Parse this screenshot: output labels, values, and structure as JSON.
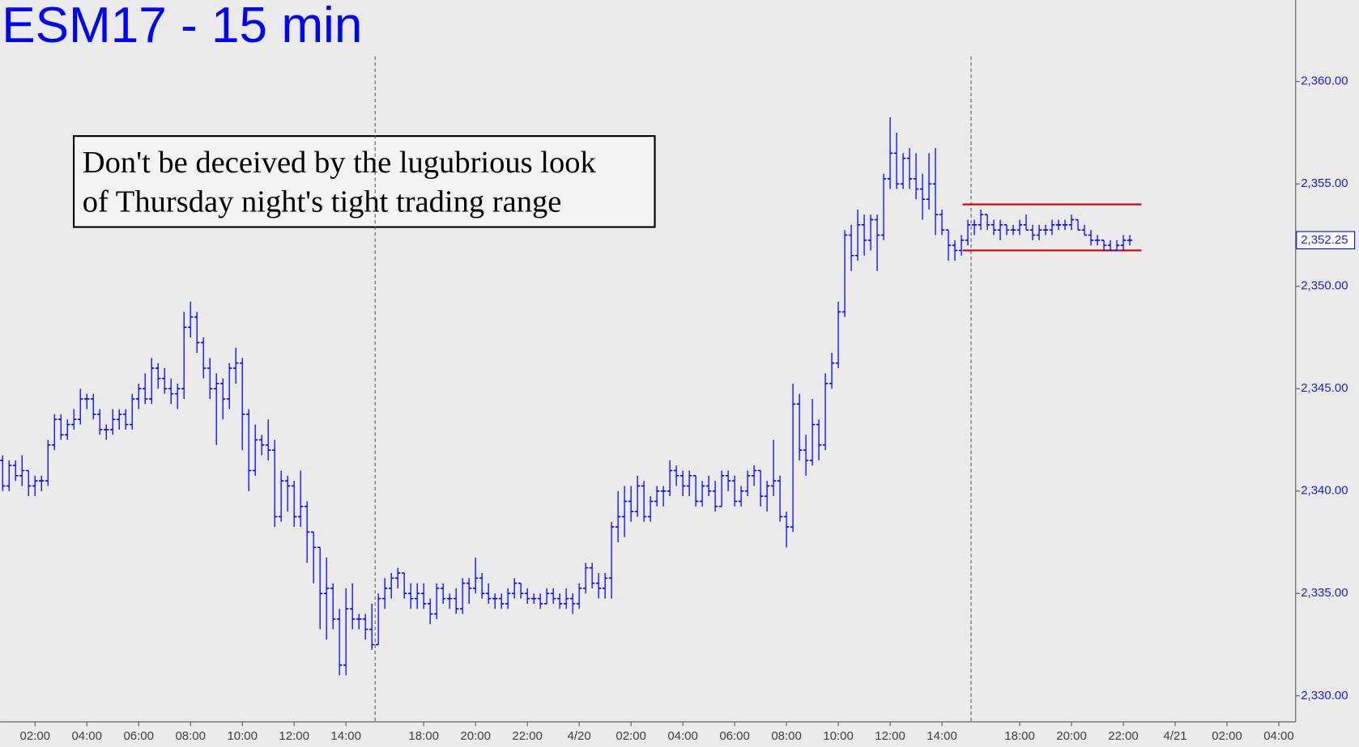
{
  "chart_data": {
    "type": "ohlc",
    "title": "ESM17 - 15 min",
    "color": "#0000ff",
    "ylim": [
      2328.73,
      2363.98
    ],
    "yticks": [
      {
        "value": 2330,
        "label": "2,330.00"
      },
      {
        "value": 2335,
        "label": "2,335.00"
      },
      {
        "value": 2340,
        "label": "2,340.00"
      },
      {
        "value": 2345,
        "label": "2,345.00"
      },
      {
        "value": 2350,
        "label": "2,350.00"
      },
      {
        "value": 2355,
        "label": "2,355.00"
      },
      {
        "value": 2360,
        "label": "2,360.00"
      }
    ],
    "xlim": [
      -0.4,
      199.6
    ],
    "xticks": [
      {
        "value": 5,
        "label": "02:00"
      },
      {
        "value": 13,
        "label": "04:00"
      },
      {
        "value": 21,
        "label": "06:00"
      },
      {
        "value": 29,
        "label": "08:00"
      },
      {
        "value": 37,
        "label": "10:00"
      },
      {
        "value": 45,
        "label": "12:00"
      },
      {
        "value": 53,
        "label": "14:00"
      },
      {
        "value": 65,
        "label": "18:00"
      },
      {
        "value": 73,
        "label": "20:00"
      },
      {
        "value": 81,
        "label": "22:00"
      },
      {
        "value": 89,
        "label": "4/20"
      },
      {
        "value": 97,
        "label": "02:00"
      },
      {
        "value": 105,
        "label": "04:00"
      },
      {
        "value": 113,
        "label": "06:00"
      },
      {
        "value": 121,
        "label": "08:00"
      },
      {
        "value": 129,
        "label": "10:00"
      },
      {
        "value": 137,
        "label": "12:00"
      },
      {
        "value": 145,
        "label": "14:00"
      },
      {
        "value": 157,
        "label": "18:00"
      },
      {
        "value": 165,
        "label": "20:00"
      },
      {
        "value": 173,
        "label": "22:00"
      },
      {
        "value": 181,
        "label": "4/21"
      },
      {
        "value": 189,
        "label": "02:00"
      },
      {
        "value": 197,
        "label": "04:00"
      }
    ],
    "session_breaks": [
      57.5,
      149.5
    ],
    "last_price": {
      "value": 2352.25,
      "label": "2,352.25"
    },
    "range_lines": {
      "color": "#cc0000",
      "levels": [
        2354.0,
        2351.75
      ],
      "x": [
        148.2,
        175.8
      ]
    },
    "annotation": [
      "Don't be deceived by the lugubrious look",
      "of Thursday night's tight trading range"
    ],
    "ohlc": [
      [
        2341.5,
        2341.75,
        2340.0,
        2340.25
      ],
      [
        2340.25,
        2341.5,
        2340.0,
        2341.25
      ],
      [
        2341.25,
        2341.5,
        2340.5,
        2340.75
      ],
      [
        2340.75,
        2341.75,
        2340.25,
        2341.0
      ],
      [
        2341.0,
        2341.0,
        2339.75,
        2340.25
      ],
      [
        2340.25,
        2340.75,
        2339.75,
        2340.5
      ],
      [
        2340.5,
        2340.75,
        2340.0,
        2340.5
      ],
      [
        2340.5,
        2342.5,
        2340.25,
        2342.25
      ],
      [
        2342.25,
        2343.75,
        2342.0,
        2343.5
      ],
      [
        2343.5,
        2343.75,
        2342.5,
        2342.75
      ],
      [
        2342.75,
        2343.5,
        2342.5,
        2343.25
      ],
      [
        2343.25,
        2344.0,
        2343.0,
        2343.5
      ],
      [
        2343.5,
        2345.0,
        2343.25,
        2344.5
      ],
      [
        2344.5,
        2344.75,
        2344.0,
        2344.5
      ],
      [
        2344.5,
        2344.75,
        2343.5,
        2343.75
      ],
      [
        2343.75,
        2344.0,
        2342.75,
        2343.0
      ],
      [
        2343.0,
        2343.25,
        2342.5,
        2343.0
      ],
      [
        2343.0,
        2344.0,
        2342.75,
        2343.5
      ],
      [
        2343.5,
        2344.0,
        2343.0,
        2343.75
      ],
      [
        2343.75,
        2344.0,
        2343.0,
        2343.25
      ],
      [
        2343.25,
        2344.75,
        2343.0,
        2344.5
      ],
      [
        2344.5,
        2345.25,
        2344.0,
        2345.0
      ],
      [
        2345.0,
        2345.75,
        2344.25,
        2344.5
      ],
      [
        2344.5,
        2346.5,
        2344.25,
        2346.0
      ],
      [
        2346.0,
        2346.25,
        2345.0,
        2345.5
      ],
      [
        2345.5,
        2346.0,
        2344.75,
        2345.0
      ],
      [
        2345.0,
        2345.5,
        2344.25,
        2344.75
      ],
      [
        2344.75,
        2345.25,
        2344.0,
        2345.0
      ],
      [
        2345.0,
        2348.75,
        2344.5,
        2348.0
      ],
      [
        2348.0,
        2349.25,
        2347.5,
        2348.5
      ],
      [
        2348.5,
        2348.75,
        2346.75,
        2347.25
      ],
      [
        2347.25,
        2347.5,
        2345.5,
        2346.0
      ],
      [
        2346.0,
        2346.5,
        2344.5,
        2345.0
      ],
      [
        2345.0,
        2345.75,
        2342.25,
        2345.25
      ],
      [
        2345.25,
        2345.5,
        2343.5,
        2344.5
      ],
      [
        2344.5,
        2346.25,
        2344.0,
        2346.0
      ],
      [
        2346.0,
        2347.0,
        2345.25,
        2346.25
      ],
      [
        2346.25,
        2346.5,
        2342.0,
        2343.75
      ],
      [
        2343.75,
        2344.0,
        2340.0,
        2341.0
      ],
      [
        2341.0,
        2343.25,
        2340.75,
        2342.5
      ],
      [
        2342.5,
        2342.75,
        2341.75,
        2342.25
      ],
      [
        2342.25,
        2343.5,
        2341.5,
        2342.0
      ],
      [
        2342.0,
        2342.5,
        2338.25,
        2338.75
      ],
      [
        2338.75,
        2341.0,
        2338.5,
        2340.5
      ],
      [
        2340.5,
        2340.75,
        2339.0,
        2340.25
      ],
      [
        2340.25,
        2340.5,
        2338.25,
        2338.75
      ],
      [
        2338.75,
        2341.0,
        2338.25,
        2339.25
      ],
      [
        2339.25,
        2339.5,
        2336.5,
        2338.0
      ],
      [
        2338.0,
        2338.0,
        2335.5,
        2337.25
      ],
      [
        2337.25,
        2337.25,
        2333.25,
        2335.0
      ],
      [
        2335.0,
        2336.75,
        2332.75,
        2335.25
      ],
      [
        2335.25,
        2335.5,
        2333.25,
        2333.75
      ],
      [
        2333.75,
        2334.25,
        2331.0,
        2331.5
      ],
      [
        2331.5,
        2335.25,
        2331.0,
        2334.25
      ],
      [
        2334.25,
        2335.5,
        2333.25,
        2333.75
      ],
      [
        2333.75,
        2334.0,
        2333.25,
        2333.75
      ],
      [
        2333.75,
        2334.0,
        2332.75,
        2333.25
      ],
      [
        2333.25,
        2334.5,
        2332.25,
        2332.5
      ],
      [
        2332.5,
        2335.0,
        2332.5,
        2334.75
      ],
      [
        2334.75,
        2335.75,
        2334.25,
        2335.25
      ],
      [
        2335.25,
        2336.0,
        2334.75,
        2335.75
      ],
      [
        2335.75,
        2336.25,
        2335.25,
        2336.0
      ],
      [
        2336.0,
        2336.0,
        2334.75,
        2335.0
      ],
      [
        2335.0,
        2335.5,
        2334.25,
        2334.75
      ],
      [
        2334.75,
        2335.5,
        2334.25,
        2335.0
      ],
      [
        2335.0,
        2335.5,
        2334.25,
        2334.5
      ],
      [
        2334.5,
        2334.75,
        2333.5,
        2334.0
      ],
      [
        2334.0,
        2335.5,
        2333.75,
        2335.25
      ],
      [
        2335.25,
        2335.5,
        2334.5,
        2334.75
      ],
      [
        2334.75,
        2335.0,
        2334.25,
        2334.75
      ],
      [
        2334.75,
        2335.25,
        2334.0,
        2334.25
      ],
      [
        2334.25,
        2335.75,
        2334.0,
        2335.5
      ],
      [
        2335.5,
        2335.75,
        2334.5,
        2335.25
      ],
      [
        2335.25,
        2336.75,
        2335.0,
        2335.75
      ],
      [
        2335.75,
        2336.0,
        2334.75,
        2335.0
      ],
      [
        2335.0,
        2335.5,
        2334.5,
        2334.75
      ],
      [
        2334.75,
        2335.0,
        2334.25,
        2334.75
      ],
      [
        2334.75,
        2335.0,
        2334.25,
        2334.5
      ],
      [
        2334.5,
        2335.25,
        2334.25,
        2335.0
      ],
      [
        2335.0,
        2335.75,
        2334.75,
        2335.5
      ],
      [
        2335.5,
        2335.5,
        2334.75,
        2335.0
      ],
      [
        2335.0,
        2335.25,
        2334.5,
        2334.75
      ],
      [
        2334.75,
        2335.0,
        2334.5,
        2334.75
      ],
      [
        2334.75,
        2335.0,
        2334.25,
        2334.5
      ],
      [
        2334.5,
        2335.25,
        2334.5,
        2335.0
      ],
      [
        2335.0,
        2335.25,
        2334.5,
        2334.75
      ],
      [
        2334.75,
        2335.0,
        2334.25,
        2334.5
      ],
      [
        2334.5,
        2335.25,
        2334.25,
        2334.75
      ],
      [
        2334.75,
        2335.0,
        2334.0,
        2334.5
      ],
      [
        2334.5,
        2335.5,
        2334.25,
        2335.25
      ],
      [
        2335.25,
        2336.5,
        2335.0,
        2336.25
      ],
      [
        2336.25,
        2336.5,
        2335.25,
        2335.5
      ],
      [
        2335.5,
        2336.0,
        2334.75,
        2335.25
      ],
      [
        2335.25,
        2336.0,
        2334.75,
        2335.75
      ],
      [
        2335.75,
        2338.5,
        2334.75,
        2338.25
      ],
      [
        2338.25,
        2340.0,
        2337.5,
        2338.75
      ],
      [
        2338.75,
        2340.25,
        2337.75,
        2339.5
      ],
      [
        2339.5,
        2340.25,
        2338.5,
        2339.0
      ],
      [
        2339.0,
        2340.75,
        2338.75,
        2340.25
      ],
      [
        2340.25,
        2340.5,
        2338.5,
        2338.75
      ],
      [
        2338.75,
        2339.75,
        2338.5,
        2339.5
      ],
      [
        2339.5,
        2340.25,
        2339.25,
        2340.0
      ],
      [
        2340.0,
        2340.25,
        2339.25,
        2340.0
      ],
      [
        2340.0,
        2341.5,
        2339.75,
        2341.0
      ],
      [
        2341.0,
        2341.25,
        2340.25,
        2340.75
      ],
      [
        2340.75,
        2341.0,
        2339.75,
        2340.25
      ],
      [
        2340.25,
        2341.0,
        2339.75,
        2340.75
      ],
      [
        2340.75,
        2340.75,
        2339.25,
        2339.5
      ],
      [
        2339.5,
        2340.5,
        2339.25,
        2340.25
      ],
      [
        2340.25,
        2340.75,
        2339.75,
        2340.0
      ],
      [
        2340.0,
        2340.5,
        2339.0,
        2339.25
      ],
      [
        2339.25,
        2341.0,
        2339.25,
        2340.75
      ],
      [
        2340.75,
        2341.0,
        2340.0,
        2340.5
      ],
      [
        2340.5,
        2340.75,
        2339.25,
        2339.5
      ],
      [
        2339.5,
        2340.25,
        2339.25,
        2340.0
      ],
      [
        2340.0,
        2341.0,
        2339.75,
        2340.75
      ],
      [
        2340.75,
        2341.25,
        2340.25,
        2341.0
      ],
      [
        2341.0,
        2341.0,
        2339.25,
        2339.75
      ],
      [
        2339.75,
        2340.5,
        2339.0,
        2340.25
      ],
      [
        2340.25,
        2342.5,
        2339.75,
        2340.5
      ],
      [
        2340.5,
        2340.75,
        2338.5,
        2338.75
      ],
      [
        2338.75,
        2339.0,
        2337.25,
        2338.25
      ],
      [
        2338.25,
        2345.25,
        2338.0,
        2344.25
      ],
      [
        2344.25,
        2344.75,
        2341.5,
        2342.0
      ],
      [
        2342.0,
        2342.75,
        2340.75,
        2341.5
      ],
      [
        2341.5,
        2344.5,
        2341.25,
        2343.25
      ],
      [
        2343.25,
        2343.5,
        2341.5,
        2342.25
      ],
      [
        2342.25,
        2345.75,
        2342.0,
        2345.25
      ],
      [
        2345.25,
        2346.75,
        2345.0,
        2346.25
      ],
      [
        2346.25,
        2349.25,
        2346.0,
        2348.75
      ],
      [
        2348.75,
        2352.75,
        2348.5,
        2352.5
      ],
      [
        2352.5,
        2353.0,
        2350.75,
        2351.5
      ],
      [
        2351.5,
        2353.75,
        2351.25,
        2353.0
      ],
      [
        2353.0,
        2353.5,
        2351.5,
        2352.25
      ],
      [
        2352.25,
        2353.5,
        2351.75,
        2353.25
      ],
      [
        2353.25,
        2353.5,
        2350.75,
        2352.5
      ],
      [
        2352.5,
        2355.5,
        2352.25,
        2355.25
      ],
      [
        2355.25,
        2358.25,
        2354.75,
        2356.5
      ],
      [
        2356.5,
        2357.5,
        2354.75,
        2355.0
      ],
      [
        2355.0,
        2356.5,
        2354.75,
        2356.25
      ],
      [
        2356.25,
        2356.75,
        2354.75,
        2355.25
      ],
      [
        2355.25,
        2356.5,
        2354.25,
        2354.75
      ],
      [
        2354.75,
        2355.5,
        2353.25,
        2354.25
      ],
      [
        2354.25,
        2356.5,
        2353.75,
        2355.0
      ],
      [
        2355.0,
        2356.75,
        2352.5,
        2353.5
      ],
      [
        2353.5,
        2353.75,
        2352.5,
        2352.75
      ],
      [
        2352.75,
        2352.75,
        2351.25,
        2352.0
      ],
      [
        2352.0,
        2352.25,
        2351.25,
        2351.75
      ],
      [
        2351.75,
        2352.5,
        2351.5,
        2352.25
      ],
      [
        2352.25,
        2353.25,
        2352.0,
        2353.0
      ],
      [
        2353.0,
        2353.25,
        2352.5,
        2353.0
      ],
      [
        2353.0,
        2353.75,
        2352.75,
        2353.5
      ],
      [
        2353.5,
        2353.5,
        2352.75,
        2353.0
      ],
      [
        2353.0,
        2353.25,
        2352.5,
        2352.75
      ],
      [
        2352.75,
        2353.25,
        2352.25,
        2353.0
      ],
      [
        2353.0,
        2353.0,
        2352.5,
        2352.75
      ],
      [
        2352.75,
        2353.0,
        2352.5,
        2352.75
      ],
      [
        2352.75,
        2353.25,
        2352.5,
        2353.0
      ],
      [
        2353.0,
        2353.5,
        2352.75,
        2352.75
      ],
      [
        2352.75,
        2353.0,
        2352.25,
        2352.5
      ],
      [
        2352.5,
        2353.0,
        2352.25,
        2352.75
      ],
      [
        2352.75,
        2353.0,
        2352.5,
        2352.75
      ],
      [
        2352.75,
        2353.25,
        2352.5,
        2353.0
      ],
      [
        2353.0,
        2353.25,
        2352.75,
        2353.0
      ],
      [
        2353.0,
        2353.25,
        2352.75,
        2353.0
      ],
      [
        2353.0,
        2353.5,
        2352.75,
        2353.25
      ],
      [
        2353.25,
        2353.25,
        2352.75,
        2352.75
      ],
      [
        2352.75,
        2353.0,
        2352.5,
        2352.5
      ],
      [
        2352.5,
        2352.75,
        2352.0,
        2352.25
      ],
      [
        2352.25,
        2352.5,
        2352.0,
        2352.25
      ],
      [
        2352.25,
        2352.25,
        2351.75,
        2352.0
      ],
      [
        2352.0,
        2352.25,
        2351.75,
        2351.75
      ],
      [
        2351.75,
        2352.25,
        2351.75,
        2352.0
      ],
      [
        2352.0,
        2352.5,
        2351.75,
        2352.25
      ],
      [
        2352.25,
        2352.5,
        2352.0,
        2352.25
      ]
    ]
  }
}
